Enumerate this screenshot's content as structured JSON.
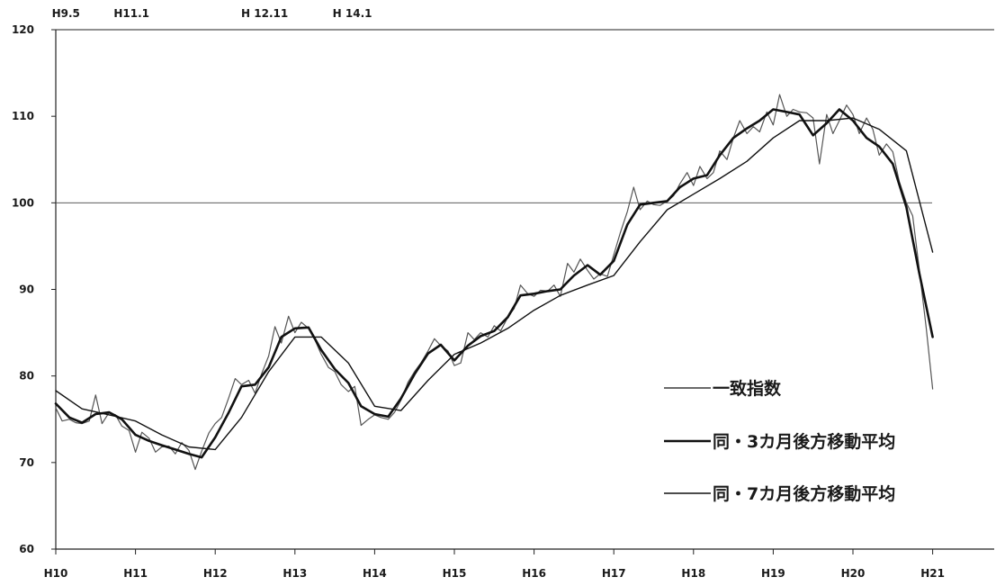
{
  "chart_data": {
    "type": "line",
    "title": "",
    "xlabel": "",
    "ylabel": "",
    "ylim": [
      60,
      120
    ],
    "y_ticks": [
      "60",
      "70",
      "80",
      "90",
      "100",
      "110",
      "120"
    ],
    "x_ticks": [
      "H10",
      "H11",
      "H12",
      "H13",
      "H14",
      "H15",
      "H16",
      "H17",
      "H18",
      "H19",
      "H20",
      "H21"
    ],
    "x_range": [
      0,
      12.9
    ],
    "reference_line": 100,
    "grid": false,
    "legend_position": "bottom-right",
    "period_marks": [
      {
        "label": "H9.5",
        "x": -0.05
      },
      {
        "label": "H11.1",
        "x": 0.95
      },
      {
        "label": "H 12.11",
        "x": 2.62
      },
      {
        "label": "H 14.1",
        "x": 3.72
      }
    ],
    "series": [
      {
        "name": "一致指数",
        "color": "#555555",
        "width": 1.2,
        "x": [
          0,
          0.08,
          0.17,
          0.25,
          0.33,
          0.42,
          0.5,
          0.58,
          0.67,
          0.75,
          0.83,
          0.92,
          1.0,
          1.08,
          1.17,
          1.25,
          1.33,
          1.42,
          1.5,
          1.58,
          1.67,
          1.75,
          1.83,
          1.92,
          2.0,
          2.08,
          2.17,
          2.25,
          2.33,
          2.42,
          2.5,
          2.58,
          2.67,
          2.75,
          2.83,
          2.92,
          3.0,
          3.08,
          3.17,
          3.25,
          3.33,
          3.42,
          3.5,
          3.58,
          3.67,
          3.75,
          3.83,
          3.92,
          4.0,
          4.08,
          4.17,
          4.25,
          4.33,
          4.42,
          4.5,
          4.58,
          4.67,
          4.75,
          4.83,
          4.92,
          5.0,
          5.08,
          5.17,
          5.25,
          5.33,
          5.42,
          5.5,
          5.58,
          5.67,
          5.75,
          5.83,
          5.92,
          6.0,
          6.08,
          6.17,
          6.25,
          6.33,
          6.42,
          6.5,
          6.58,
          6.67,
          6.75,
          6.83,
          6.92,
          7.0,
          7.08,
          7.17,
          7.25,
          7.33,
          7.42,
          7.5,
          7.58,
          7.67,
          7.75,
          7.83,
          7.92,
          8.0,
          8.08,
          8.17,
          8.25,
          8.33,
          8.42,
          8.5,
          8.58,
          8.67,
          8.75,
          8.83,
          8.92,
          9.0,
          9.08,
          9.17,
          9.25,
          9.33,
          9.42,
          9.5,
          9.58,
          9.67,
          9.75,
          9.83,
          9.92,
          10.0,
          10.08,
          10.17,
          10.25,
          10.33,
          10.42,
          10.5,
          10.58,
          10.67,
          10.75,
          10.83,
          10.92,
          11.0
        ],
        "values": [
          76.3,
          74.8,
          75.0,
          74.6,
          74.5,
          74.8,
          77.8,
          74.5,
          75.8,
          75.5,
          74.2,
          73.7,
          71.2,
          73.5,
          72.8,
          71.2,
          71.8,
          71.9,
          71.0,
          72.3,
          71.4,
          69.2,
          71.3,
          73.4,
          74.5,
          75.2,
          77.5,
          79.7,
          79.0,
          79.5,
          78.0,
          80.2,
          82.3,
          85.7,
          83.8,
          86.9,
          85.0,
          86.2,
          85.5,
          84.2,
          82.5,
          81.0,
          80.5,
          79.0,
          78.2,
          78.8,
          74.3,
          75.0,
          75.5,
          75.2,
          75.0,
          75.8,
          77.2,
          79.3,
          80.5,
          81.5,
          82.9,
          84.3,
          83.5,
          82.9,
          81.2,
          81.5,
          85.0,
          84.2,
          85.0,
          84.5,
          85.8,
          85.2,
          86.8,
          87.8,
          90.5,
          89.5,
          89.2,
          89.9,
          89.8,
          90.5,
          89.2,
          93.0,
          92.0,
          93.5,
          92.2,
          91.2,
          91.8,
          91.5,
          94.0,
          96.5,
          99.0,
          101.8,
          99.2,
          100.2,
          99.8,
          99.7,
          100.2,
          100.8,
          102.2,
          103.5,
          102.0,
          104.2,
          102.8,
          103.5,
          106.0,
          105.0,
          107.5,
          109.5,
          108.0,
          108.8,
          108.2,
          110.5,
          109.0,
          112.5,
          110.0,
          110.8,
          110.5,
          110.4,
          109.8,
          104.5,
          110.2,
          108.0,
          109.5,
          111.3,
          110.2,
          108.0,
          109.8,
          108.5,
          105.5,
          106.8,
          105.9,
          102.5,
          100.0,
          98.5,
          92.5,
          85.5,
          78.5
        ]
      },
      {
        "name": "同・3カ月後方移動平均",
        "color": "#111111",
        "width": 2.6,
        "x": [
          0,
          0.17,
          0.33,
          0.5,
          0.67,
          0.83,
          1.0,
          1.17,
          1.33,
          1.5,
          1.67,
          1.83,
          2.0,
          2.17,
          2.33,
          2.5,
          2.67,
          2.83,
          3.0,
          3.17,
          3.33,
          3.5,
          3.67,
          3.83,
          4.0,
          4.17,
          4.33,
          4.5,
          4.67,
          4.83,
          5.0,
          5.17,
          5.33,
          5.5,
          5.67,
          5.83,
          6.0,
          6.17,
          6.33,
          6.5,
          6.67,
          6.83,
          7.0,
          7.17,
          7.33,
          7.5,
          7.67,
          7.83,
          8.0,
          8.17,
          8.33,
          8.5,
          8.67,
          8.83,
          9.0,
          9.17,
          9.33,
          9.5,
          9.67,
          9.83,
          10.0,
          10.17,
          10.33,
          10.5,
          10.67,
          10.83,
          11.0
        ],
        "values": [
          76.8,
          75.2,
          74.6,
          75.6,
          75.8,
          75.0,
          73.2,
          72.5,
          72.0,
          71.5,
          71.0,
          70.6,
          72.9,
          75.8,
          78.8,
          79.0,
          81.0,
          84.5,
          85.5,
          85.6,
          83.0,
          80.8,
          79.2,
          76.5,
          75.6,
          75.3,
          77.4,
          80.2,
          82.6,
          83.6,
          81.8,
          83.5,
          84.6,
          85.2,
          86.8,
          89.3,
          89.5,
          89.8,
          90.0,
          91.6,
          92.8,
          91.7,
          93.3,
          97.5,
          99.8,
          100.0,
          100.2,
          101.8,
          102.8,
          103.2,
          105.5,
          107.5,
          108.6,
          109.5,
          110.8,
          110.5,
          110.2,
          107.8,
          109.2,
          110.8,
          109.5,
          107.5,
          106.5,
          104.5,
          99.5,
          92.0,
          84.5
        ]
      },
      {
        "name": "同・7カ月後方移動平均",
        "color": "#111111",
        "width": 1.4,
        "x": [
          0,
          0.33,
          0.67,
          1.0,
          1.33,
          1.67,
          2.0,
          2.33,
          2.67,
          3.0,
          3.33,
          3.67,
          4.0,
          4.33,
          4.67,
          5.0,
          5.33,
          5.67,
          6.0,
          6.33,
          6.67,
          7.0,
          7.33,
          7.67,
          8.0,
          8.33,
          8.67,
          9.0,
          9.33,
          9.67,
          10.0,
          10.33,
          10.67,
          11.0
        ],
        "values": [
          78.3,
          76.2,
          75.5,
          74.8,
          73.2,
          71.8,
          71.5,
          75.2,
          80.5,
          84.5,
          84.5,
          81.5,
          76.5,
          76.0,
          79.5,
          82.5,
          83.8,
          85.5,
          87.6,
          89.3,
          90.5,
          91.6,
          95.5,
          99.2,
          101.0,
          102.8,
          104.8,
          107.5,
          109.5,
          109.5,
          109.8,
          108.5,
          106.0,
          94.3
        ]
      }
    ]
  }
}
